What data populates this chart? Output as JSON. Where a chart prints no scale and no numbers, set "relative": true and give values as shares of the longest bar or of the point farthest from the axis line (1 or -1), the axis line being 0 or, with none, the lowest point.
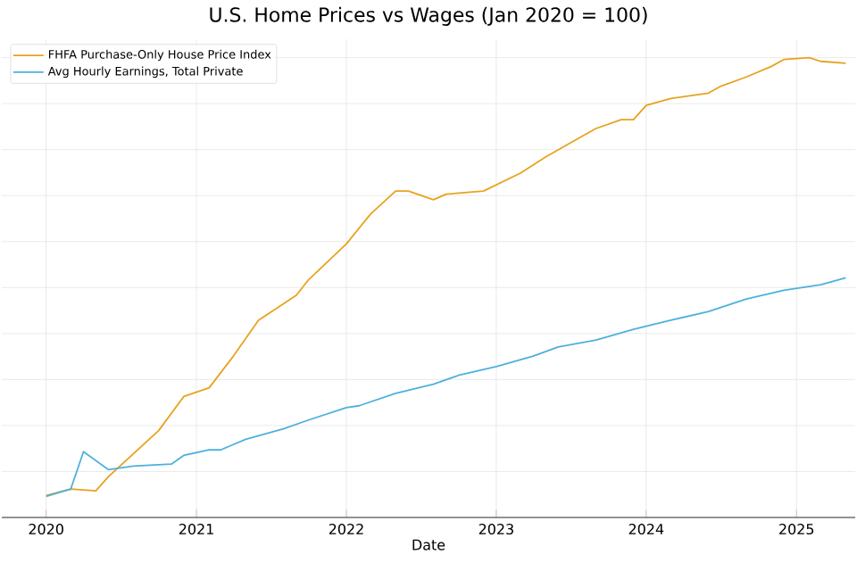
{
  "chart_data": {
    "type": "line",
    "title": "U.S. Home Prices vs Wages (Jan 2020 = 100)",
    "xlabel": "Date",
    "relative": true,
    "grid": true,
    "legend": "top left",
    "xlim": [
      "2019-09-15",
      "2025-05-24"
    ],
    "xticks": [
      "2020",
      "2021",
      "2022",
      "2023",
      "2024",
      "2025"
    ],
    "series": [
      {
        "name": "FHFA Purchase-Only House Price Index",
        "color": "#e8a21e",
        "x": [
          "2020-01",
          "2020-03",
          "2020-05",
          "2020-06",
          "2020-10",
          "2020-12",
          "2021-02",
          "2021-04",
          "2021-06",
          "2021-09",
          "2021-10",
          "2022-01",
          "2022-03",
          "2022-05",
          "2022-06",
          "2022-08",
          "2022-09",
          "2022-12",
          "2023-03",
          "2023-05",
          "2023-07",
          "2023-09",
          "2023-11",
          "2023-12",
          "2024-01",
          "2024-03",
          "2024-06",
          "2024-07",
          "2024-09",
          "2024-11",
          "2024-12",
          "2025-02",
          "2025-03",
          "2025-05"
        ],
        "values": [
          0.048,
          0.062,
          0.058,
          0.089,
          0.189,
          0.263,
          0.282,
          0.351,
          0.429,
          0.483,
          0.517,
          0.595,
          0.66,
          0.71,
          0.71,
          0.691,
          0.703,
          0.71,
          0.749,
          0.784,
          0.815,
          0.846,
          0.865,
          0.865,
          0.896,
          0.911,
          0.923,
          0.938,
          0.958,
          0.981,
          0.996,
          1.0,
          0.992,
          0.988
        ]
      },
      {
        "name": "Avg Hourly Earnings, Total Private",
        "color": "#4fb0dc",
        "x": [
          "2020-01",
          "2020-03",
          "2020-04",
          "2020-06",
          "2020-08",
          "2020-11",
          "2020-12",
          "2021-02",
          "2021-03",
          "2021-05",
          "2021-08",
          "2021-10",
          "2022-01",
          "2022-02",
          "2022-05",
          "2022-08",
          "2022-10",
          "2023-01",
          "2023-04",
          "2023-06",
          "2023-09",
          "2023-12",
          "2024-03",
          "2024-06",
          "2024-09",
          "2024-12",
          "2025-03",
          "2025-05"
        ],
        "values": [
          0.046,
          0.062,
          0.143,
          0.104,
          0.112,
          0.116,
          0.135,
          0.147,
          0.147,
          0.17,
          0.193,
          0.212,
          0.239,
          0.243,
          0.27,
          0.29,
          0.309,
          0.328,
          0.351,
          0.371,
          0.386,
          0.409,
          0.429,
          0.448,
          0.475,
          0.494,
          0.506,
          0.521
        ]
      }
    ]
  }
}
